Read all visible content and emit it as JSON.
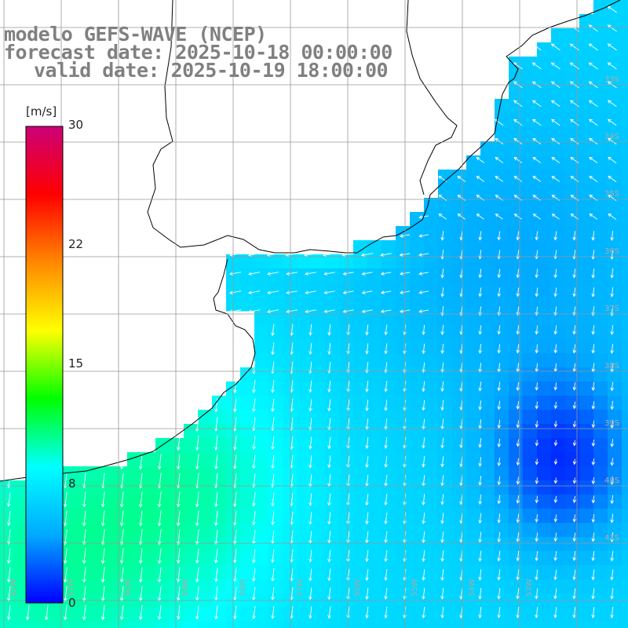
{
  "header": {
    "line1": "modelo GEFS-WAVE (NCEP)",
    "line2": "forecast date: 2025-10-18 00:00:00",
    "line3": "valid date: 2025-10-19 18:00:00"
  },
  "colorbar": {
    "unit": "[m/s]",
    "min": 0,
    "max": 30,
    "ticks": [
      {
        "label": "30",
        "value": 30
      },
      {
        "label": "22",
        "value": 22
      },
      {
        "label": "15",
        "value": 15
      },
      {
        "label": "8",
        "value": 8
      },
      {
        "label": "0",
        "value": 0
      }
    ],
    "stops": [
      "#0000ff",
      "#00aaff",
      "#00ffff",
      "#00ff00",
      "#ffff00",
      "#ff8800",
      "#ff0000",
      "#cc0077"
    ]
  },
  "map": {
    "lon_range": [
      -63.0,
      -52.0
    ],
    "lat_range": [
      -42.5,
      -32.0
    ],
    "lat_labels": [
      "33S",
      "34S",
      "35S",
      "36S",
      "37S",
      "38S",
      "39S",
      "40S",
      "41S"
    ],
    "lon_labels": [
      "62W",
      "61W",
      "60W",
      "59W",
      "58W",
      "57W",
      "56W",
      "55W",
      "54W",
      "53W"
    ],
    "land_color": "#ffffff",
    "grid_color": "#999999",
    "arrow_color": "#ffffff"
  }
}
